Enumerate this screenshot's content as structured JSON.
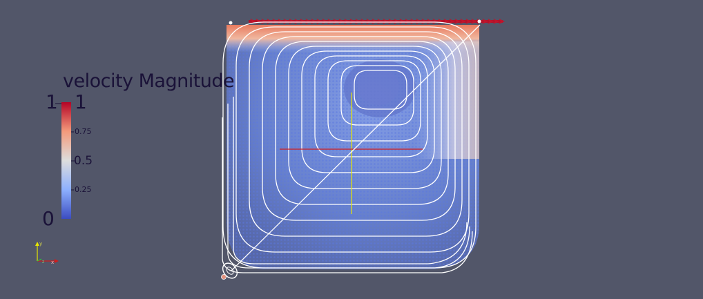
{
  "legend": {
    "title": "velocity Magnitude",
    "range_min_label": "0",
    "range_max_left_label": "1",
    "range_max_right_label": "1",
    "ticks": [
      "0.75",
      "0.5",
      "0.25"
    ]
  },
  "colors": {
    "background": "#525669",
    "low": "#3b4cc0",
    "mid": "#dddddd",
    "high": "#b40426",
    "streamline": "#ffffff",
    "axis_y": "#e6e600",
    "axis_x": "#d01c1c"
  },
  "orientation_axes": {
    "x_label": "x",
    "y_label": "y",
    "z_label": "z"
  }
}
